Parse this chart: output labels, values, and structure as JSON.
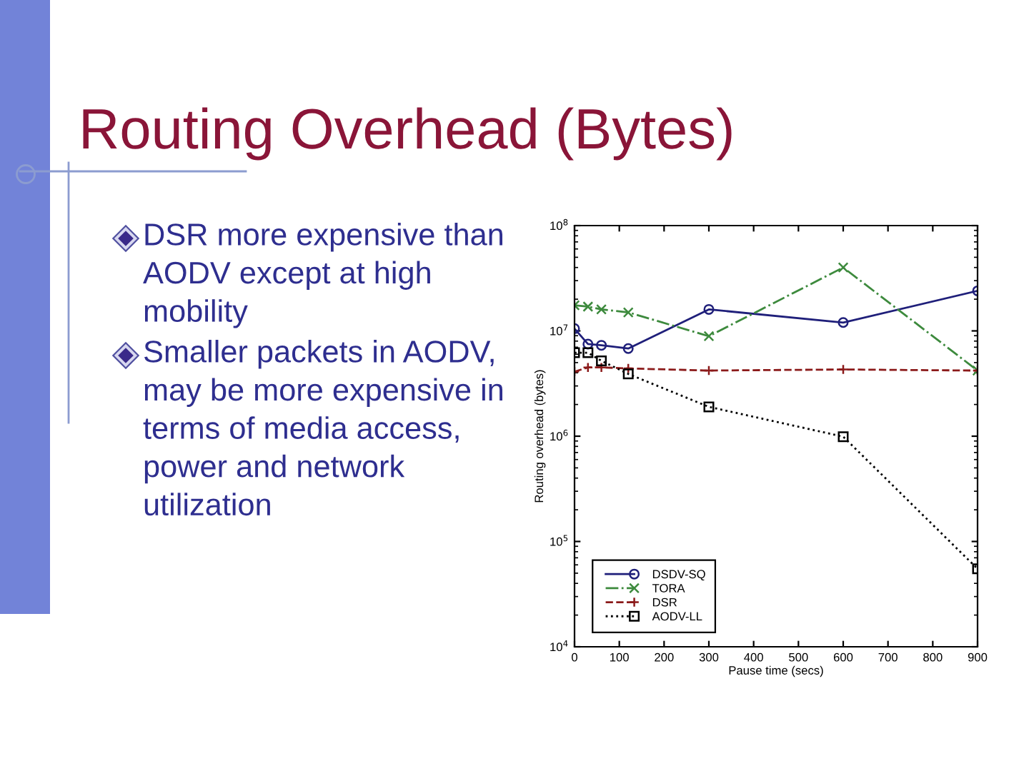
{
  "chart_data": {
    "type": "line",
    "title": "Routing Overhead (Bytes)",
    "annotations": [
      "DSR more expensive than AODV except at high mobility",
      "Smaller packets in AODV, may be more expensive in terms of media access, power and network utilization"
    ],
    "xlabel": "Pause time (secs)",
    "ylabel": "Routing overhead (bytes)",
    "x": [
      0,
      30,
      60,
      120,
      300,
      600,
      900
    ],
    "series": [
      {
        "name": "DSDV-SQ",
        "color": "#1f1f7a",
        "marker": "circle",
        "line_style": "solid",
        "values": [
          10500000,
          7500000,
          7300000,
          6800000,
          16000000,
          12000000,
          24000000
        ]
      },
      {
        "name": "TORA",
        "color": "#3d8a3d",
        "marker": "cross",
        "line_style": "dashdot",
        "values": [
          17500000,
          17000000,
          16000000,
          15000000,
          8900000,
          40000000,
          4200000
        ]
      },
      {
        "name": "DSR",
        "color": "#8b1a1a",
        "marker": "plus",
        "line_style": "dashed",
        "values": [
          4100000,
          4500000,
          4500000,
          4400000,
          4200000,
          4300000,
          4200000
        ]
      },
      {
        "name": "AODV-LL",
        "color": "#000000",
        "marker": "square",
        "line_style": "dotted",
        "values": [
          6200000,
          6200000,
          5200000,
          3900000,
          1900000,
          990000,
          55000
        ]
      }
    ],
    "log": "y",
    "xlim": [
      0,
      900
    ],
    "xticks": [
      0,
      100,
      200,
      300,
      400,
      500,
      600,
      700,
      800,
      900
    ],
    "ylim": [
      10000,
      100000000
    ],
    "yticks": [
      {
        "value": 10000,
        "label": "10$^{4}$"
      },
      {
        "value": 100000,
        "label": "10$^{5}$"
      },
      {
        "value": 1000000,
        "label": "10$^{6}$"
      },
      {
        "value": 10000000,
        "label": "10$^{7}$"
      },
      {
        "value": 100000000,
        "label": "10$^{8}$"
      }
    ],
    "legend": "bottom left"
  }
}
